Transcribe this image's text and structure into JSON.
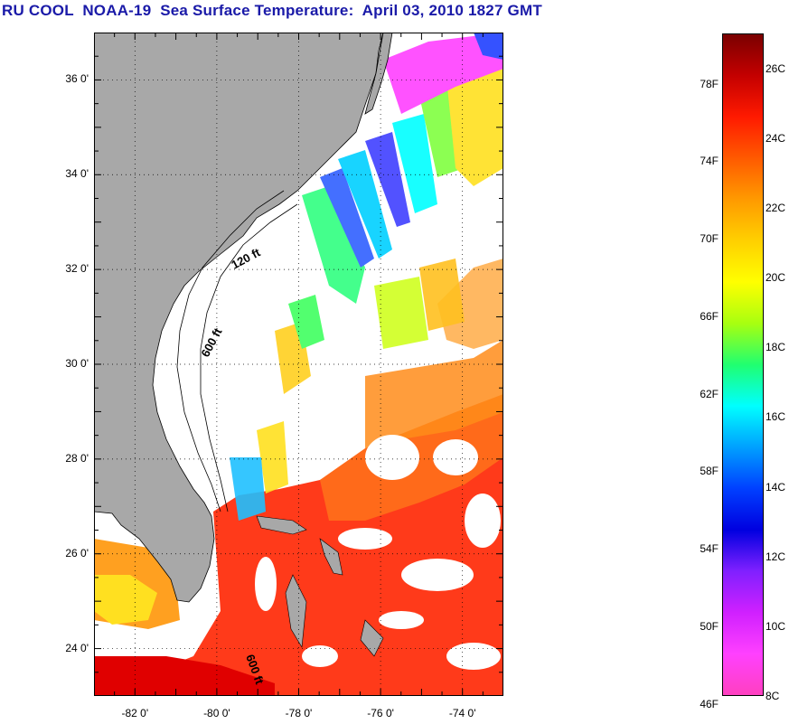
{
  "title": "RU COOL  NOAA-19  Sea Surface Temperature:  April 03, 2010 1827 GMT",
  "map": {
    "lat_range": [
      23,
      37
    ],
    "lon_range": [
      -83,
      -73
    ],
    "lat_ticks": [
      "24 0'",
      "26 0'",
      "28 0'",
      "30 0'",
      "32 0'",
      "34 0'",
      "36 0'"
    ],
    "lat_values": [
      24,
      26,
      28,
      30,
      32,
      34,
      36
    ],
    "lon_ticks": [
      "-82 0'",
      "-80 0'",
      "-78 0'",
      "-76 0'",
      "-74 0'"
    ],
    "lon_values": [
      -82,
      -80,
      -78,
      -76,
      -74
    ],
    "isobaths": [
      "120 ft",
      "600 ft",
      "600 ft"
    ],
    "colors": {
      "land": "#a8a8a8",
      "cloud": "#ffffff",
      "coast": "#000000",
      "grid": "#000000"
    }
  },
  "colorbar": {
    "celsius_labels": [
      "26C",
      "24C",
      "22C",
      "20C",
      "18C",
      "16C",
      "14C",
      "12C",
      "10C",
      "8C"
    ],
    "celsius_values": [
      26,
      24,
      22,
      20,
      18,
      16,
      14,
      12,
      10,
      8
    ],
    "fahrenheit_labels": [
      "78F",
      "74F",
      "70F",
      "66F",
      "62F",
      "58F",
      "54F",
      "50F",
      "46F"
    ],
    "fahrenheit_values": [
      78,
      74,
      70,
      66,
      62,
      58,
      54,
      50,
      46
    ],
    "range_c": [
      8,
      27
    ],
    "gradient": [
      "#7a0000",
      "#c40000",
      "#ff1a00",
      "#ff5a00",
      "#ff9a00",
      "#ffd000",
      "#ffff00",
      "#a8ff10",
      "#20ff70",
      "#00ffff",
      "#00a0ff",
      "#0040ff",
      "#0000e0",
      "#8020ff",
      "#d020ff",
      "#ff40ff",
      "#ff40c0"
    ]
  }
}
